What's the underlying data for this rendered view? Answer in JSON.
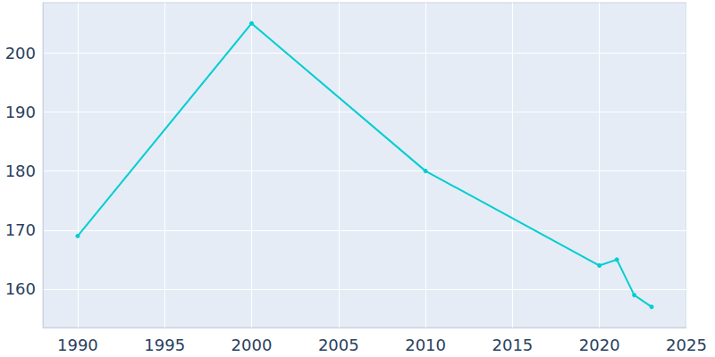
{
  "chart_data": {
    "type": "line",
    "x": [
      1990,
      2000,
      2010,
      2020,
      2021,
      2022,
      2023
    ],
    "values": [
      169,
      205,
      180,
      164,
      165,
      159,
      157
    ],
    "color": "#00ced1",
    "marker": "circle",
    "xlim": [
      1988,
      2025
    ],
    "xticks": [
      1990,
      1995,
      2000,
      2005,
      2010,
      2015,
      2020,
      2025
    ],
    "ylim": [
      153.5,
      208.5
    ],
    "yticks": [
      160,
      170,
      180,
      190,
      200
    ],
    "grid": true
  }
}
